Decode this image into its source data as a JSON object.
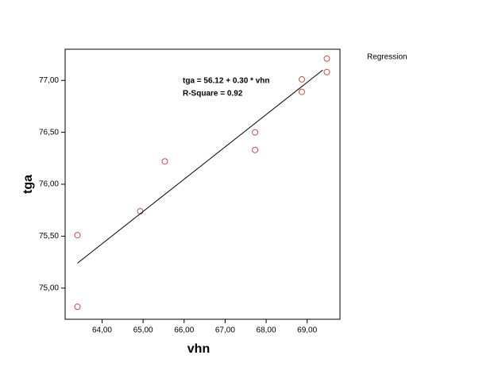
{
  "chart_data": {
    "type": "scatter",
    "title": "Regression",
    "x_label": "vhn",
    "y_label": "tga",
    "annotations": [
      "tga = 56.12 + 0.30 * vhn",
      "R-Square = 0.92"
    ],
    "series": [
      {
        "name": "tga",
        "color": "#c0504d",
        "x": [
          63.4,
          63.4,
          64.93,
          65.53,
          67.73,
          67.73,
          68.87,
          68.87,
          69.48,
          69.48
        ],
        "values": [
          75.51,
          74.82,
          75.74,
          76.22,
          76.5,
          76.33,
          77.01,
          76.89,
          77.21,
          77.08
        ]
      },
      {
        "name": "fit",
        "type": "line",
        "color": "#000000",
        "x": [
          63.4,
          69.38
        ],
        "values": [
          75.24,
          77.1
        ]
      }
    ],
    "xlim": [
      63.1,
      69.8
    ],
    "ylim": [
      74.7,
      77.3
    ],
    "xticks": [
      {
        "value": 64,
        "label": "64,00"
      },
      {
        "value": 65,
        "label": "65,00"
      },
      {
        "value": 66,
        "label": "66,00"
      },
      {
        "value": 67,
        "label": "67,00"
      },
      {
        "value": 68,
        "label": "68,00"
      },
      {
        "value": 69,
        "label": "69,00"
      }
    ],
    "yticks": [
      {
        "value": 75,
        "label": "75,00"
      },
      {
        "value": 75.5,
        "label": "75,50"
      },
      {
        "value": 76,
        "label": "76,00"
      },
      {
        "value": 76.5,
        "label": "76,50"
      },
      {
        "value": 77,
        "label": "77,00"
      }
    ],
    "grid": false
  }
}
